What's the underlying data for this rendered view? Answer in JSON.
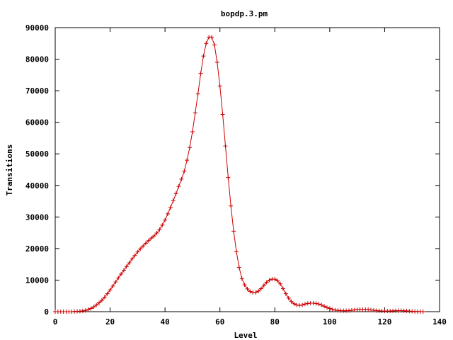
{
  "chart_data": {
    "type": "line",
    "title": "bopdp.3.pm",
    "xlabel": "Level",
    "ylabel": "Transitions",
    "xlim": [
      0,
      140
    ],
    "ylim": [
      0,
      90000
    ],
    "x_ticks": [
      "0",
      "20",
      "40",
      "60",
      "80",
      "100",
      "120",
      "140"
    ],
    "y_ticks": [
      "0",
      "10000",
      "20000",
      "30000",
      "40000",
      "50000",
      "60000",
      "70000",
      "80000",
      "90000"
    ],
    "grid": false,
    "legend": "none",
    "series": [
      {
        "color": "#cc0000",
        "marker": "plus",
        "points": [
          [
            0,
            0
          ],
          [
            1,
            0
          ],
          [
            2,
            0
          ],
          [
            3,
            0
          ],
          [
            4,
            0
          ],
          [
            5,
            0
          ],
          [
            6,
            0
          ],
          [
            7,
            50
          ],
          [
            8,
            100
          ],
          [
            9,
            150
          ],
          [
            10,
            250
          ],
          [
            11,
            400
          ],
          [
            12,
            650
          ],
          [
            13,
            1000
          ],
          [
            14,
            1500
          ],
          [
            15,
            2100
          ],
          [
            16,
            2800
          ],
          [
            17,
            3600
          ],
          [
            18,
            4600
          ],
          [
            19,
            5700
          ],
          [
            20,
            6900
          ],
          [
            21,
            8100
          ],
          [
            22,
            9400
          ],
          [
            23,
            10700
          ],
          [
            24,
            11900
          ],
          [
            25,
            13100
          ],
          [
            26,
            14300
          ],
          [
            27,
            15500
          ],
          [
            28,
            16700
          ],
          [
            29,
            17800
          ],
          [
            30,
            18900
          ],
          [
            31,
            19900
          ],
          [
            32,
            20800
          ],
          [
            33,
            21700
          ],
          [
            34,
            22500
          ],
          [
            35,
            23300
          ],
          [
            36,
            24000
          ],
          [
            37,
            24900
          ],
          [
            38,
            26000
          ],
          [
            39,
            27400
          ],
          [
            40,
            29000
          ],
          [
            41,
            31000
          ],
          [
            42,
            33000
          ],
          [
            43,
            35200
          ],
          [
            44,
            37400
          ],
          [
            45,
            39700
          ],
          [
            46,
            42000
          ],
          [
            47,
            44500
          ],
          [
            48,
            48000
          ],
          [
            49,
            52000
          ],
          [
            50,
            57000
          ],
          [
            51,
            63000
          ],
          [
            52,
            69000
          ],
          [
            53,
            75500
          ],
          [
            54,
            81000
          ],
          [
            55,
            85000
          ],
          [
            56,
            87000
          ],
          [
            57,
            87000
          ],
          [
            58,
            84500
          ],
          [
            59,
            79000
          ],
          [
            60,
            71500
          ],
          [
            61,
            62500
          ],
          [
            62,
            52500
          ],
          [
            63,
            42500
          ],
          [
            64,
            33500
          ],
          [
            65,
            25500
          ],
          [
            66,
            19000
          ],
          [
            67,
            14000
          ],
          [
            68,
            10500
          ],
          [
            69,
            8500
          ],
          [
            70,
            7200
          ],
          [
            71,
            6400
          ],
          [
            72,
            6100
          ],
          [
            73,
            6100
          ],
          [
            74,
            6500
          ],
          [
            75,
            7300
          ],
          [
            76,
            8300
          ],
          [
            77,
            9300
          ],
          [
            78,
            10000
          ],
          [
            79,
            10300
          ],
          [
            80,
            10300
          ],
          [
            81,
            9800
          ],
          [
            82,
            8800
          ],
          [
            83,
            7300
          ],
          [
            84,
            5700
          ],
          [
            85,
            4300
          ],
          [
            86,
            3200
          ],
          [
            87,
            2500
          ],
          [
            88,
            2100
          ],
          [
            89,
            2000
          ],
          [
            90,
            2100
          ],
          [
            91,
            2400
          ],
          [
            92,
            2600
          ],
          [
            93,
            2700
          ],
          [
            94,
            2700
          ],
          [
            95,
            2600
          ],
          [
            96,
            2400
          ],
          [
            97,
            2100
          ],
          [
            98,
            1700
          ],
          [
            99,
            1300
          ],
          [
            100,
            1000
          ],
          [
            101,
            700
          ],
          [
            102,
            500
          ],
          [
            103,
            400
          ],
          [
            104,
            350
          ],
          [
            105,
            300
          ],
          [
            106,
            300
          ],
          [
            107,
            350
          ],
          [
            108,
            450
          ],
          [
            109,
            550
          ],
          [
            110,
            650
          ],
          [
            111,
            700
          ],
          [
            112,
            700
          ],
          [
            113,
            700
          ],
          [
            114,
            650
          ],
          [
            115,
            550
          ],
          [
            116,
            450
          ],
          [
            117,
            350
          ],
          [
            118,
            280
          ],
          [
            119,
            230
          ],
          [
            120,
            200
          ],
          [
            121,
            200
          ],
          [
            122,
            220
          ],
          [
            123,
            260
          ],
          [
            124,
            300
          ],
          [
            125,
            330
          ],
          [
            126,
            330
          ],
          [
            127,
            300
          ],
          [
            128,
            250
          ],
          [
            129,
            180
          ],
          [
            130,
            120
          ],
          [
            131,
            70
          ],
          [
            132,
            40
          ],
          [
            133,
            20
          ],
          [
            134,
            0
          ]
        ]
      }
    ]
  }
}
